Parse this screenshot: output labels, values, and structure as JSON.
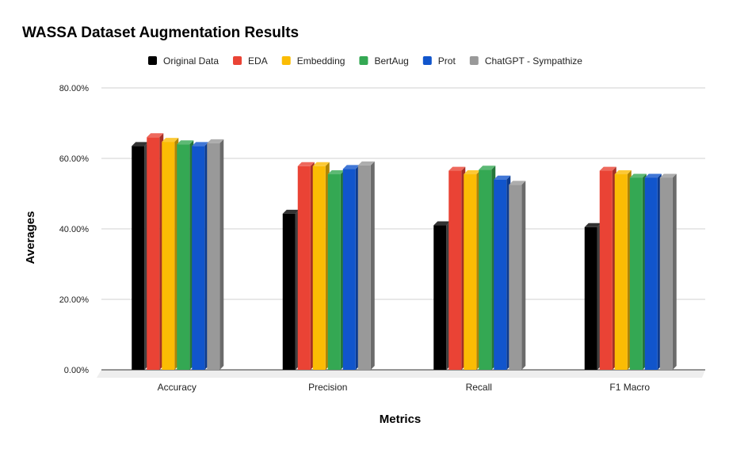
{
  "chart_data": {
    "type": "bar",
    "title": "WASSA Dataset Augmentation Results",
    "xlabel": "Metrics",
    "ylabel": "Averages",
    "ylim": [
      0,
      0.8
    ],
    "yticks": [
      "0.00%",
      "20.00%",
      "40.00%",
      "60.00%",
      "80.00%"
    ],
    "grid": true,
    "legend_position": "top",
    "categories": [
      "Accuracy",
      "Precision",
      "Recall",
      "F1 Macro"
    ],
    "series": [
      {
        "name": "Original Data",
        "color": "#000000",
        "values": [
          0.635,
          0.443,
          0.41,
          0.405
        ]
      },
      {
        "name": "EDA",
        "color": "#ea4335",
        "values": [
          0.66,
          0.578,
          0.565,
          0.565
        ]
      },
      {
        "name": "Embedding",
        "color": "#fbbc04",
        "values": [
          0.647,
          0.578,
          0.555,
          0.555
        ]
      },
      {
        "name": "BertAug",
        "color": "#34a853",
        "values": [
          0.64,
          0.555,
          0.568,
          0.545
        ]
      },
      {
        "name": "Prot",
        "color": "#1155cc",
        "values": [
          0.635,
          0.57,
          0.54,
          0.545
        ]
      },
      {
        "name": "ChatGPT - Sympathize",
        "color": "#999999",
        "values": [
          0.643,
          0.58,
          0.525,
          0.545
        ]
      }
    ]
  }
}
